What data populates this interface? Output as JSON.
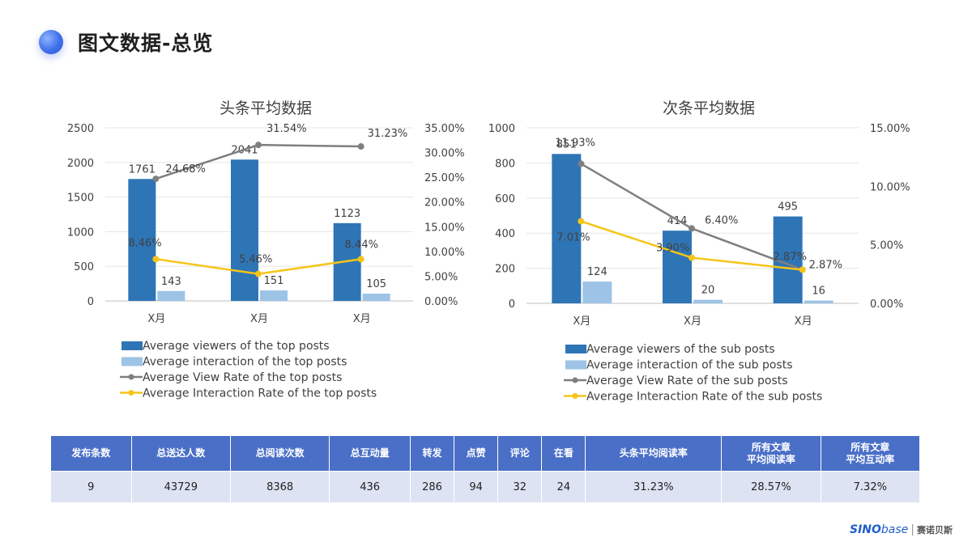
{
  "page": {
    "title": "图文数据-总览"
  },
  "colors": {
    "bar_viewers": "#2e75b6",
    "bar_interaction": "#9dc3e6",
    "line_view_rate": "#7f7f7f",
    "line_interaction_rate": "#f5c518",
    "table_header": "#4a6fc7",
    "table_cell": "#dde3f3"
  },
  "chart_data": [
    {
      "id": "top",
      "type": "bar",
      "title": "头条平均数据",
      "categories": [
        "X月",
        "X月",
        "X月"
      ],
      "ylim": [
        0,
        2500
      ],
      "yticks": [
        0,
        500,
        1000,
        1500,
        2000,
        2500
      ],
      "y2lim": [
        0,
        35
      ],
      "y2ticks": [
        "0.00%",
        "5.00%",
        "10.00%",
        "15.00%",
        "20.00%",
        "25.00%",
        "30.00%",
        "35.00%"
      ],
      "series": [
        {
          "name": "Average viewers of the top posts",
          "kind": "bar",
          "axis": "left",
          "values": [
            1761,
            2041,
            1123
          ]
        },
        {
          "name": "Average interaction of the top posts",
          "kind": "bar",
          "axis": "left",
          "values": [
            143,
            151,
            105
          ]
        },
        {
          "name": "Average View Rate of the top posts",
          "kind": "line",
          "axis": "right",
          "values": [
            24.68,
            31.54,
            31.23
          ],
          "labels": [
            "24.68%",
            "31.54%",
            "31.23%"
          ]
        },
        {
          "name": "Average Interaction Rate of the top posts",
          "kind": "line",
          "axis": "right",
          "values": [
            8.46,
            5.46,
            8.44
          ],
          "labels": [
            "8.46%",
            "5.46%",
            "8.44%"
          ]
        }
      ]
    },
    {
      "id": "sub",
      "type": "bar",
      "title": "次条平均数据",
      "categories": [
        "X月",
        "X月",
        "X月"
      ],
      "ylim": [
        0,
        1000
      ],
      "yticks": [
        0,
        200,
        400,
        600,
        800,
        1000
      ],
      "y2lim": [
        0,
        15
      ],
      "y2ticks": [
        "0.00%",
        "5.00%",
        "10.00%",
        "15.00%"
      ],
      "series": [
        {
          "name": "Average  viewers of the sub posts",
          "kind": "bar",
          "axis": "left",
          "values": [
            851,
            414,
            495
          ]
        },
        {
          "name": "Average interaction of the sub posts",
          "kind": "bar",
          "axis": "left",
          "values": [
            124,
            20,
            16
          ]
        },
        {
          "name": "Average View Rate of the sub posts",
          "kind": "line",
          "axis": "right",
          "values": [
            11.93,
            6.4,
            2.87
          ],
          "labels": [
            "11.93%",
            "6.40%",
            "2.87%"
          ]
        },
        {
          "name": "Average Interaction Rate of the sub posts",
          "kind": "line",
          "axis": "right",
          "values": [
            7.01,
            3.9,
            2.87
          ],
          "labels": [
            "7.01%",
            "3.90%",
            "2.87%"
          ]
        }
      ]
    }
  ],
  "table": {
    "headers": [
      "发布条数",
      "总送达人数",
      "总阅读次数",
      "总互动量",
      "转发",
      "点赞",
      "评论",
      "在看",
      "头条平均阅读率",
      "所有文章\n平均阅读率",
      "所有文章\n平均互动率"
    ],
    "values": [
      "9",
      "43729",
      "8368",
      "436",
      "286",
      "94",
      "32",
      "24",
      "31.23%",
      "28.57%",
      "7.32%"
    ]
  },
  "logo": {
    "brand": "SINO",
    "brand_suffix": "base",
    "cn": "赛诺贝斯"
  }
}
